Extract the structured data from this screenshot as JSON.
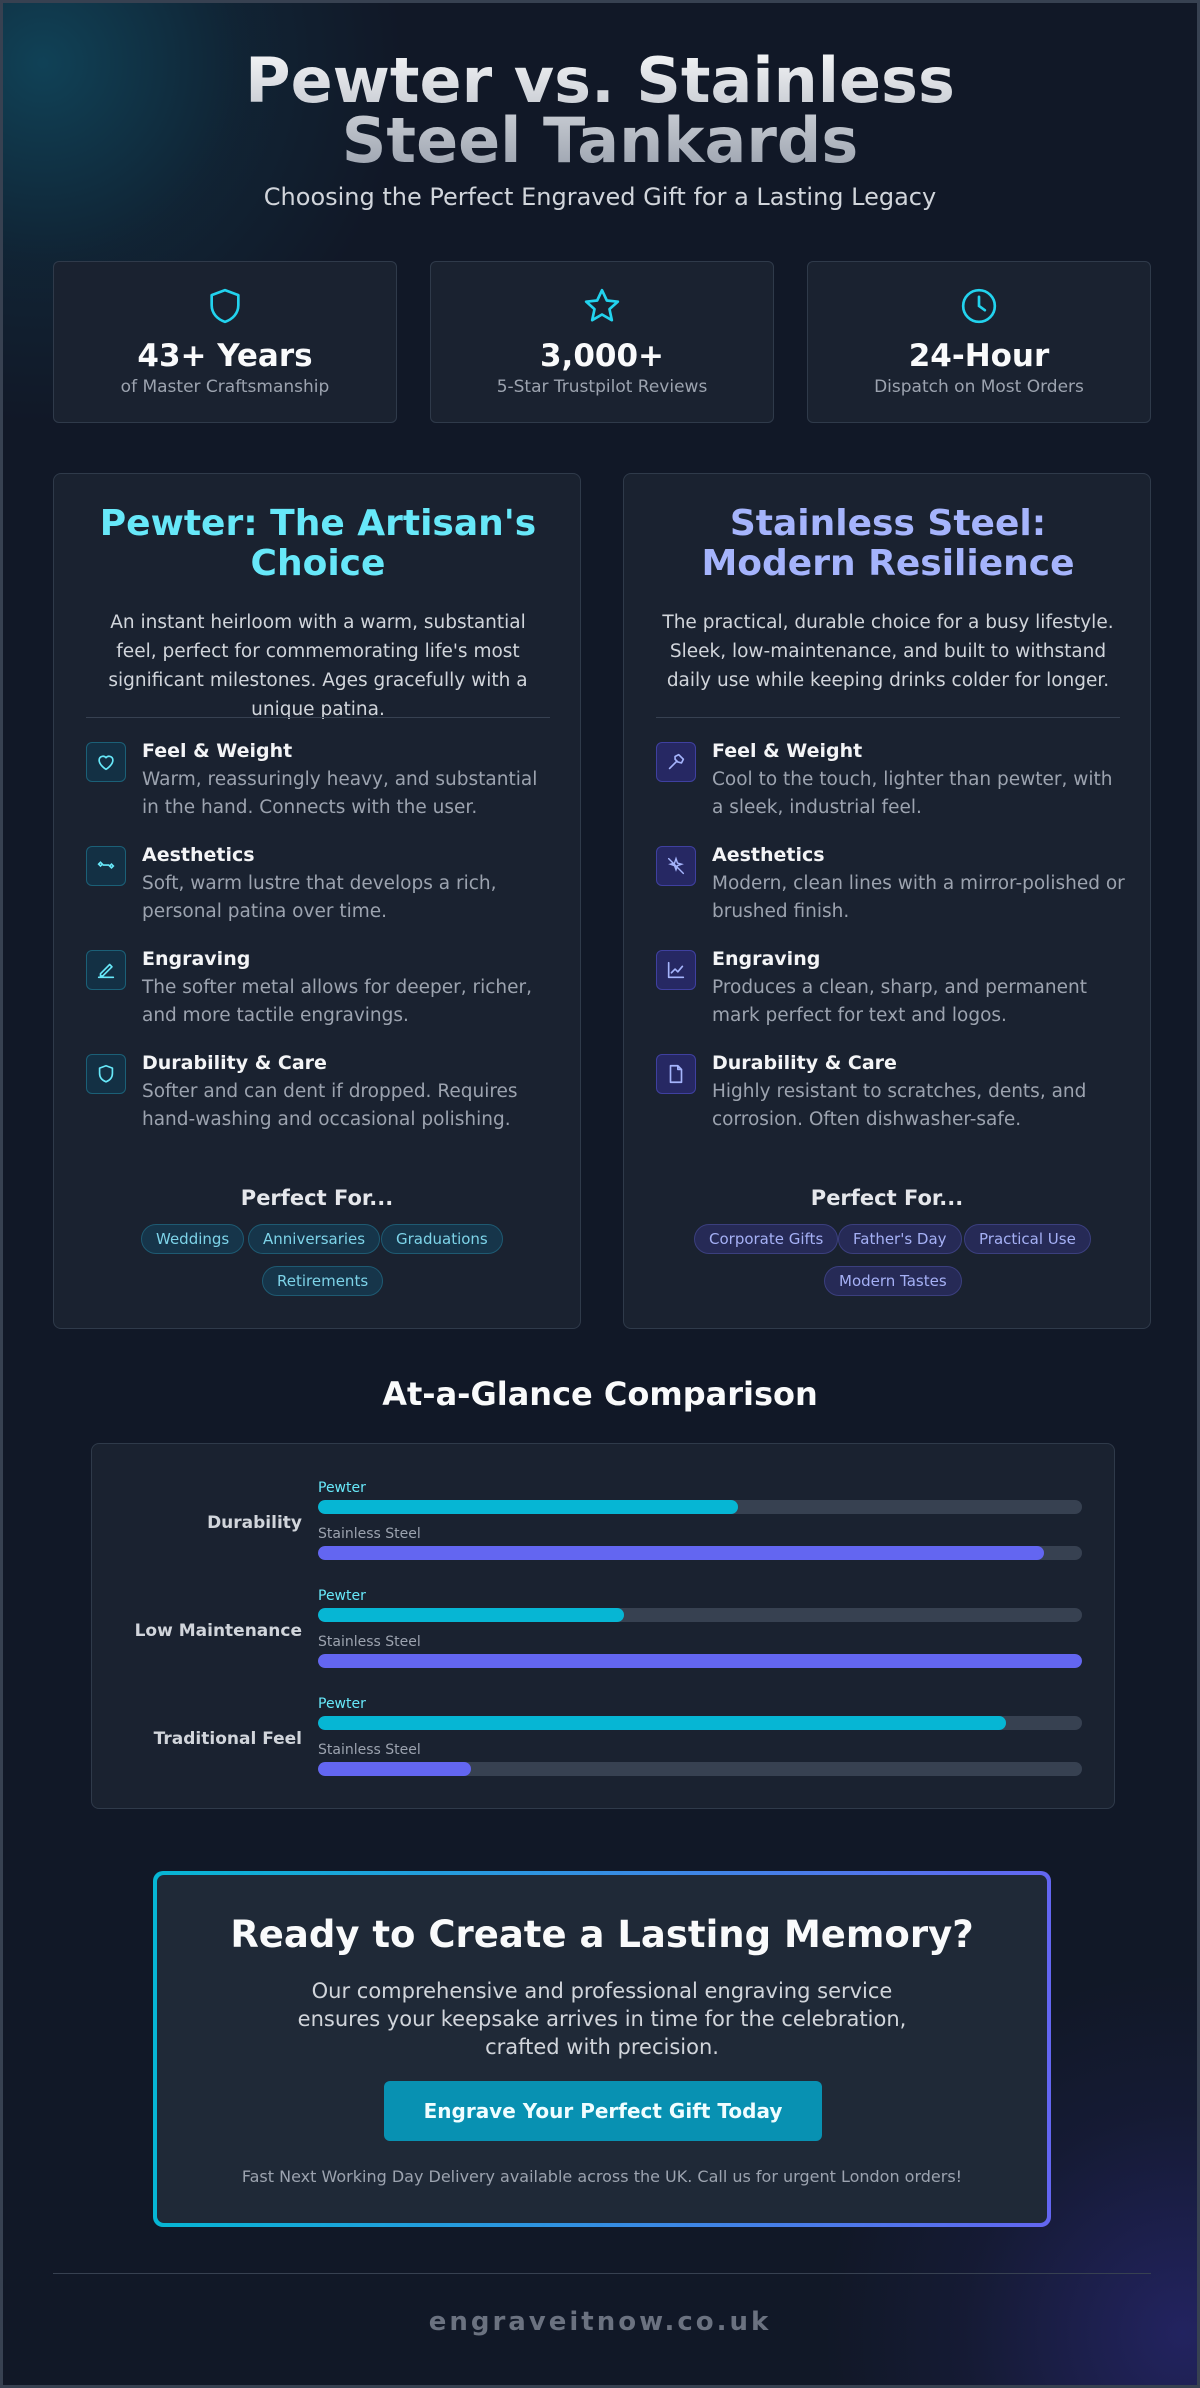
{
  "header": {
    "title": "Pewter vs. Stainless Steel Tankards",
    "subtitle": "Choosing the Perfect Engraved Gift for a Lasting Legacy"
  },
  "stats": [
    {
      "icon": "shield-icon",
      "value": "43+ Years",
      "label": "of Master Craftsmanship"
    },
    {
      "icon": "star-icon",
      "value": "3,000+",
      "label": "5-Star Trustpilot Reviews"
    },
    {
      "icon": "clock-icon",
      "value": "24-Hour",
      "label": "Dispatch on Most Orders"
    }
  ],
  "pewter": {
    "title": "Pewter: The Artisan's Choice",
    "intro": "An instant heirloom with a warm, substantial feel, perfect for commemorating life's most significant milestones. Ages gracefully with a unique patina.",
    "accent": "#67e8f9",
    "features": [
      {
        "icon": "heart-icon",
        "title": "Feel & Weight",
        "desc": "Warm, reassuringly heavy, and substantial in the hand. Connects with the user."
      },
      {
        "icon": "sparkle-icon",
        "title": "Aesthetics",
        "desc": "Soft, warm lustre that develops a rich, personal patina over time."
      },
      {
        "icon": "pen-icon",
        "title": "Engraving",
        "desc": "The softer metal allows for deeper, richer, and more tactile engravings."
      },
      {
        "icon": "shield-icon",
        "title": "Durability & Care",
        "desc": "Softer and can dent if dropped. Requires hand-washing and occasional polishing."
      }
    ],
    "perfect_for_label": "Perfect For...",
    "tags": [
      "Weddings",
      "Anniversaries",
      "Graduations",
      "Retirements"
    ]
  },
  "steel": {
    "title": "Stainless Steel: Modern Resilience",
    "intro": "The practical, durable choice for a busy lifestyle. Sleek, low-maintenance, and built to withstand daily use while keeping drinks colder for longer.",
    "accent": "#a5b4fc",
    "features": [
      {
        "icon": "hammer-icon",
        "title": "Feel & Weight",
        "desc": "Cool to the touch, lighter than pewter, with a sleek, industrial feel."
      },
      {
        "icon": "crossed-sparkle-icon",
        "title": "Aesthetics",
        "desc": "Modern, clean lines with a mirror-polished or brushed finish."
      },
      {
        "icon": "chart-icon",
        "title": "Engraving",
        "desc": "Produces a clean, sharp, and permanent mark perfect for text and logos."
      },
      {
        "icon": "document-icon",
        "title": "Durability & Care",
        "desc": "Highly resistant to scratches, dents, and corrosion. Often dishwasher-safe."
      }
    ],
    "perfect_for_label": "Perfect For...",
    "tags": [
      "Corporate Gifts",
      "Father's Day",
      "Practical Use",
      "Modern Tastes"
    ]
  },
  "glance": {
    "title": "At-a-Glance Comparison",
    "pewter_label": "Pewter",
    "steel_label": "Stainless Steel",
    "rows": [
      {
        "label": "Durability",
        "pewter": 55,
        "steel": 95
      },
      {
        "label": "Low Maintenance",
        "pewter": 40,
        "steel": 100
      },
      {
        "label": "Traditional Feel",
        "pewter": 90,
        "steel": 20
      }
    ]
  },
  "cta": {
    "title": "Ready to Create a Lasting Memory?",
    "text": "Our comprehensive and professional engraving service ensures your keepsake arrives in time for the celebration, crafted with precision.",
    "button": "Engrave Your Perfect Gift Today",
    "note": "Fast Next Working Day Delivery available across the UK. Call us for urgent London orders!"
  },
  "footer": {
    "domain": "engraveitnow.co.uk"
  },
  "colors": {
    "pewter": "#06b6d4",
    "steel": "#6366f1",
    "background": "#111827"
  }
}
